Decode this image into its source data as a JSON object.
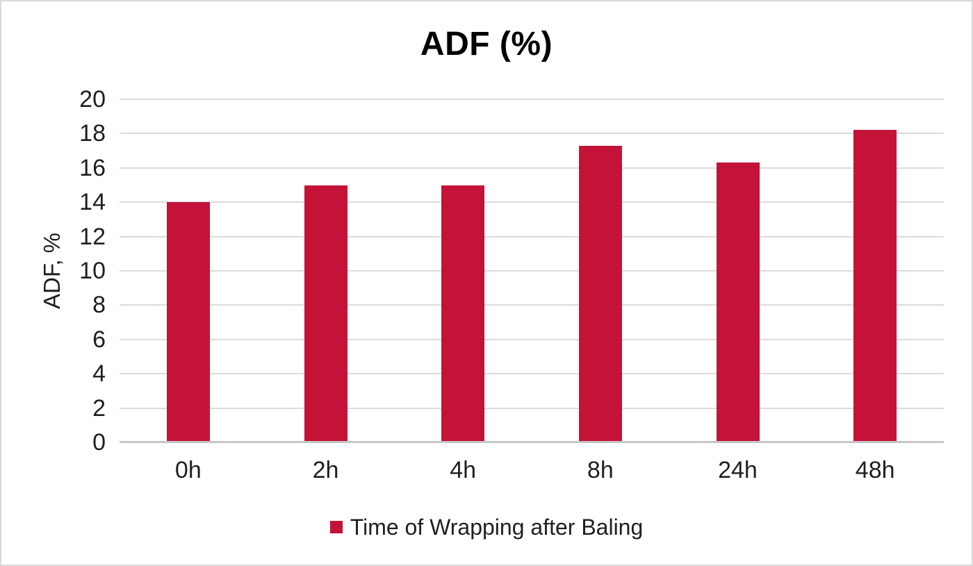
{
  "figure": {
    "background": "#ffffff",
    "border_color": "#d8d8d8"
  },
  "chart_data": {
    "type": "bar",
    "title": "ADF (%)",
    "xlabel": "",
    "ylabel": "ADF, %",
    "categories": [
      "0h",
      "2h",
      "4h",
      "8h",
      "24h",
      "48h"
    ],
    "series": [
      {
        "name": "Time of Wrapping after Baling",
        "color": "#c41239",
        "values": [
          14.0,
          15.0,
          15.0,
          17.3,
          16.3,
          18.2
        ]
      }
    ],
    "ylim": [
      0,
      20
    ],
    "ytick_step": 2,
    "yticks": [
      0,
      2,
      4,
      6,
      8,
      10,
      12,
      14,
      16,
      18,
      20
    ],
    "grid": true,
    "legend_position": "bottom",
    "colors": {
      "gridline": "#dbdbdb",
      "axis_line": "#c6c6c6",
      "tick_text": "#1f1f1f",
      "title_text": "#000000"
    }
  }
}
